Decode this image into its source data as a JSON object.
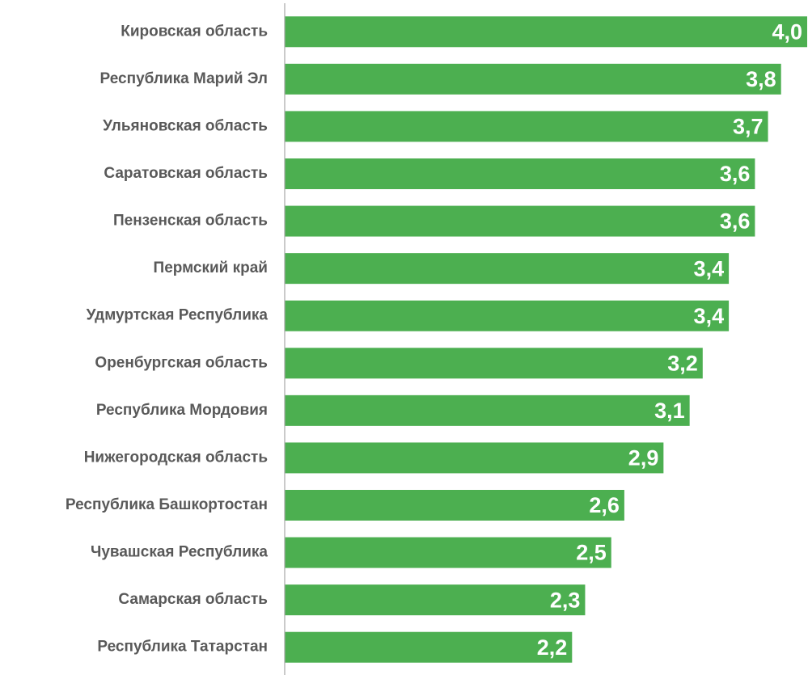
{
  "chart_data": {
    "type": "bar",
    "orientation": "horizontal",
    "categories": [
      "Кировская область",
      "Республика Марий Эл",
      "Ульяновская область",
      "Саратовская область",
      "Пензенская область",
      "Пермский край",
      "Удмуртская Республика",
      "Оренбургская область",
      "Республика Мордовия",
      "Нижегородская область",
      "Республика Башкортостан",
      "Чувашская Республика",
      "Самарская область",
      "Республика Татарстан"
    ],
    "values": [
      4.0,
      3.8,
      3.7,
      3.6,
      3.6,
      3.4,
      3.4,
      3.2,
      3.1,
      2.9,
      2.6,
      2.5,
      2.3,
      2.2
    ],
    "value_labels": [
      "4,0",
      "3,8",
      "3,7",
      "3,6",
      "3,6",
      "3,4",
      "3,4",
      "3,2",
      "3,1",
      "2,9",
      "2,6",
      "2,5",
      "2,3",
      "2,2"
    ],
    "xlim": [
      0,
      4.0
    ],
    "title": "",
    "xlabel": "",
    "ylabel": "",
    "grid": false,
    "legend": "none",
    "bar_color": "#4CAF50",
    "value_label_color": "#FFFFFF",
    "category_label_color": "#595959",
    "axis_color": "#A6A6A6"
  }
}
